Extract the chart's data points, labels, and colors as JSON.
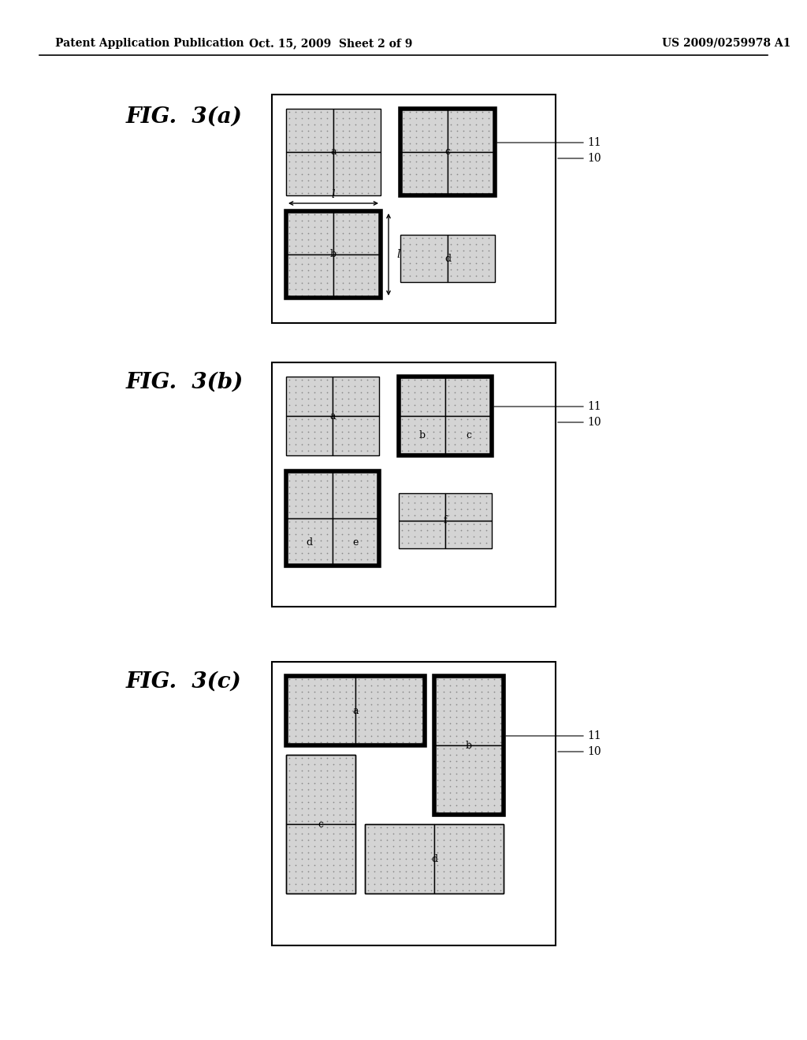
{
  "header_left": "Patent Application Publication",
  "header_mid": "Oct. 15, 2009  Sheet 2 of 9",
  "header_right": "US 2009/0259978 A1",
  "fig_labels": [
    "FIG.  3(a)",
    "FIG.  3(b)",
    "FIG.  3(c)"
  ],
  "bg_color": "#ffffff",
  "dot_color": "#d0d0d0",
  "thick_lw": 4.0,
  "thin_lw": 1.0,
  "outer_lw": 1.5
}
